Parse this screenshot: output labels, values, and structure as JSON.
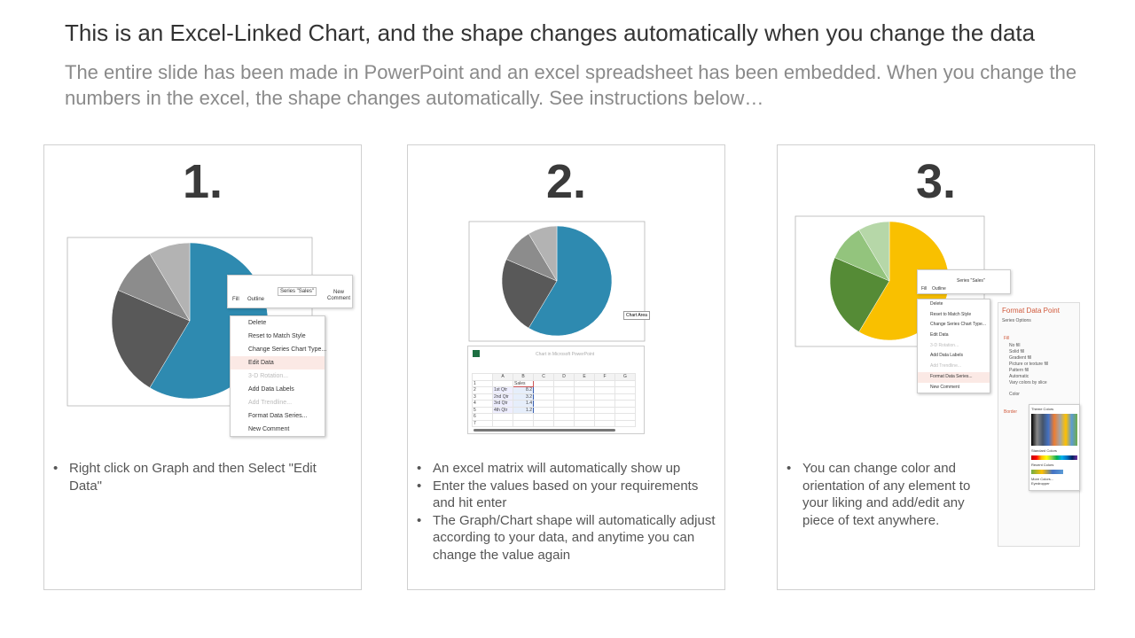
{
  "header": {
    "title": "This is an Excel-Linked Chart, and the shape changes automatically when you change the data",
    "subtitle": "The entire slide has been made in PowerPoint and an excel spreadsheet has been embedded. When you change the numbers in the excel, the shape changes automatically. See instructions below…"
  },
  "steps": [
    {
      "number": "1.",
      "bullets": [
        "Right click on Graph and then Select \"Edit Data\""
      ]
    },
    {
      "number": "2.",
      "bullets": [
        "An excel matrix will automatically show up",
        "Enter the values based on your requirements and hit enter",
        "The Graph/Chart shape will automatically adjust according to your data, and anytime you can change the value again"
      ]
    },
    {
      "number": "3.",
      "bullets": [
        "You can change color and orientation of any element to your liking and add/edit any piece of text anywhere."
      ]
    }
  ],
  "toolbar": {
    "fill": "Fill",
    "outline": "Outline",
    "series": "Series \"Sales\"",
    "new_comment": "New Comment"
  },
  "context_menu": [
    "Delete",
    "Reset to Match Style",
    "Change Series Chart Type...",
    "Edit Data",
    "3-D Rotation...",
    "Add Data Labels",
    "Add Trendline...",
    "Format Data Series...",
    "New Comment"
  ],
  "chart_area_label": "Chart Area",
  "excel": {
    "title": "Chart in Microsoft PowerPoint",
    "columns": [
      "A",
      "B",
      "C",
      "D",
      "E",
      "F",
      "G"
    ],
    "header": "Sales",
    "rows": [
      {
        "label": "1st Qtr",
        "value": 8.2
      },
      {
        "label": "2nd Qtr",
        "value": 3.2
      },
      {
        "label": "3rd Qtr",
        "value": 1.4
      },
      {
        "label": "4th Qtr",
        "value": 1.2
      }
    ]
  },
  "format_pane": {
    "title": "Format Data Point",
    "series_options": "Series Options",
    "fill": "Fill",
    "fill_options": [
      "No fill",
      "Solid fill",
      "Gradient fill",
      "Picture or texture fill",
      "Pattern fill",
      "Automatic",
      "Vary colors by slice"
    ],
    "color": "Color",
    "border": "Border",
    "theme_colors": "Theme Colors",
    "standard_colors": "Standard Colors",
    "recent_colors": "Recent Colors",
    "more_colors": "More Colors...",
    "eyedropper": "Eyedropper"
  },
  "colors": {
    "pie_gray": [
      "#2e8ab0",
      "#595959",
      "#8c8c8c",
      "#b3b3b3"
    ],
    "pie_green": [
      "#f9c000",
      "#558b36",
      "#93c47d",
      "#b6d7a8"
    ]
  }
}
